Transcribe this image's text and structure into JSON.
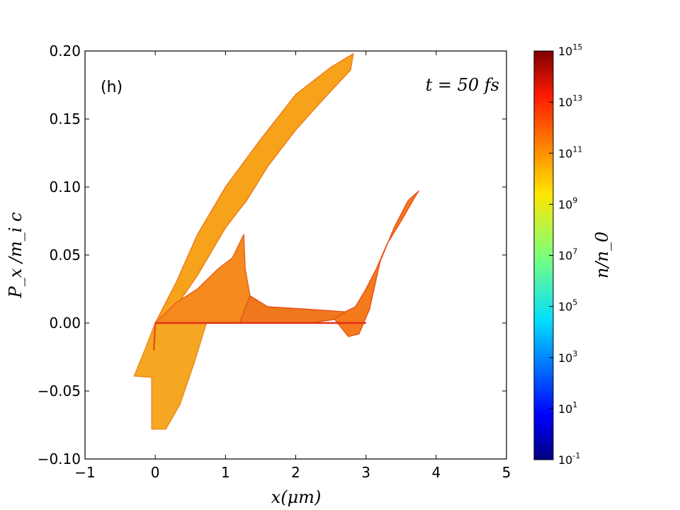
{
  "chart_data": {
    "type": "scatter",
    "title": "",
    "panel_label": "(h)",
    "annotation": "t = 50 fs",
    "xlabel": "x(μm)",
    "ylabel": "P_x /m_i c",
    "xlim": [
      -1,
      5
    ],
    "ylim": [
      -0.1,
      0.2
    ],
    "x_ticks": [
      -1,
      0,
      1,
      2,
      3,
      4,
      5
    ],
    "x_tick_labels": [
      "−1",
      "0",
      "1",
      "2",
      "3",
      "4",
      "5"
    ],
    "y_ticks": [
      -0.1,
      -0.05,
      0.0,
      0.05,
      0.1,
      0.15,
      0.2
    ],
    "y_tick_labels": [
      "−0.10",
      "−0.05",
      "0.00",
      "0.05",
      "0.10",
      "0.15",
      "0.20"
    ],
    "grid": false,
    "colorbar": {
      "label": "n/n_0",
      "scale": "log",
      "range": [
        0.1,
        1000000000000000.0
      ],
      "tick_bases": [
        "10",
        "10",
        "10",
        "10",
        "10",
        "10",
        "10",
        "10",
        "10"
      ],
      "tick_exponents": [
        "15",
        "13",
        "11",
        "9",
        "7",
        "5",
        "3",
        "1",
        "-1"
      ],
      "tick_values": [
        1000000000000000.0,
        10000000000000.0,
        100000000000.0,
        1000000000.0,
        10000000.0,
        100000.0,
        1000.0,
        10.0,
        0.1
      ],
      "colormap": "jet"
    },
    "regions": [
      {
        "name": "upper-branch",
        "color": "#f7a21b",
        "edge_color": "#ef7d1a",
        "polygon": [
          [
            0.0,
            0.0
          ],
          [
            0.3,
            0.03
          ],
          [
            0.6,
            0.065
          ],
          [
            1.0,
            0.1
          ],
          [
            1.5,
            0.135
          ],
          [
            2.0,
            0.168
          ],
          [
            2.5,
            0.188
          ],
          [
            2.82,
            0.198
          ],
          [
            2.78,
            0.186
          ],
          [
            2.4,
            0.165
          ],
          [
            2.0,
            0.142
          ],
          [
            1.6,
            0.115
          ],
          [
            1.3,
            0.09
          ],
          [
            1.0,
            0.07
          ],
          [
            0.6,
            0.035
          ],
          [
            0.2,
            0.005
          ]
        ]
      },
      {
        "name": "lower-spray",
        "color": "#f5a623",
        "edge_color": "#ee8c1c",
        "polygon": [
          [
            0.0,
            0.0
          ],
          [
            0.7,
            0.0
          ],
          [
            0.8,
            0.012
          ],
          [
            0.55,
            -0.03
          ],
          [
            0.35,
            -0.06
          ],
          [
            0.15,
            -0.078
          ],
          [
            -0.05,
            -0.078
          ],
          [
            -0.05,
            -0.04
          ],
          [
            -0.3,
            -0.039
          ],
          [
            -0.15,
            -0.02
          ]
        ]
      },
      {
        "name": "central-fan",
        "color": "#f58a1e",
        "edge_color": "#e8621a",
        "polygon": [
          [
            0.0,
            0.0
          ],
          [
            1.2,
            0.0
          ],
          [
            1.4,
            0.005
          ],
          [
            1.28,
            0.04
          ],
          [
            1.26,
            0.065
          ],
          [
            1.1,
            0.048
          ],
          [
            0.9,
            0.04
          ],
          [
            0.6,
            0.025
          ],
          [
            0.3,
            0.015
          ]
        ]
      },
      {
        "name": "plateau",
        "color": "#f0781c",
        "edge_color": "#e0541a",
        "polygon": [
          [
            1.2,
            0.0
          ],
          [
            2.2,
            0.0
          ],
          [
            2.6,
            0.003
          ],
          [
            2.75,
            0.008
          ],
          [
            2.2,
            0.01
          ],
          [
            1.6,
            0.012
          ],
          [
            1.35,
            0.02
          ]
        ]
      },
      {
        "name": "right-branch",
        "color": "#f47a1c",
        "edge_color": "#e8551a",
        "polygon": [
          [
            2.55,
            0.003
          ],
          [
            2.75,
            -0.01
          ],
          [
            2.9,
            -0.008
          ],
          [
            3.05,
            0.01
          ],
          [
            3.2,
            0.045
          ],
          [
            3.4,
            0.07
          ],
          [
            3.6,
            0.09
          ],
          [
            3.75,
            0.097
          ],
          [
            3.7,
            0.093
          ],
          [
            3.5,
            0.075
          ],
          [
            3.3,
            0.058
          ],
          [
            3.15,
            0.04
          ],
          [
            3.0,
            0.025
          ],
          [
            2.85,
            0.012
          ],
          [
            2.7,
            0.008
          ]
        ]
      }
    ],
    "lines": [
      {
        "name": "core-line",
        "color": "#e2301a",
        "points": [
          [
            0.0,
            0.0
          ],
          [
            3.0,
            0.0
          ]
        ]
      },
      {
        "name": "left-edge",
        "color": "#e8521a",
        "points": [
          [
            0.0,
            0.0
          ],
          [
            -0.02,
            -0.02
          ]
        ]
      }
    ]
  }
}
